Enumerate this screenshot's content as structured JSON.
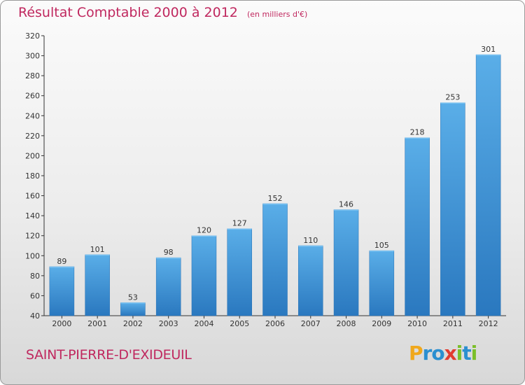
{
  "title": "Résultat Comptable 2000 à 2012",
  "unit": "(en milliers d'€)",
  "commune": "SAINT-PIERRE-D'EXIDEUIL",
  "logo": {
    "letters": [
      "P",
      "r",
      "o",
      "x",
      "i",
      "t",
      "i"
    ],
    "colors": [
      "#f0a81c",
      "#2b8fd0",
      "#2b8fd0",
      "#e23b2f",
      "#7bbf2a",
      "#2b8fd0",
      "#7bbf2a"
    ]
  },
  "colors": {
    "accent": "#c0285f",
    "bar": "#4a9fe0",
    "bar_dark": "#2f7fc4"
  },
  "chart_data": {
    "type": "bar",
    "categories": [
      "2000",
      "2001",
      "2002",
      "2003",
      "2004",
      "2005",
      "2006",
      "2007",
      "2008",
      "2009",
      "2010",
      "2011",
      "2012"
    ],
    "values": [
      89,
      101,
      53,
      98,
      120,
      127,
      152,
      110,
      146,
      105,
      218,
      253,
      301
    ],
    "ylim": [
      40,
      320
    ],
    "yticks": [
      40,
      60,
      80,
      100,
      120,
      140,
      160,
      180,
      200,
      220,
      240,
      260,
      280,
      300,
      320
    ],
    "grid": false,
    "data_labels": true
  }
}
